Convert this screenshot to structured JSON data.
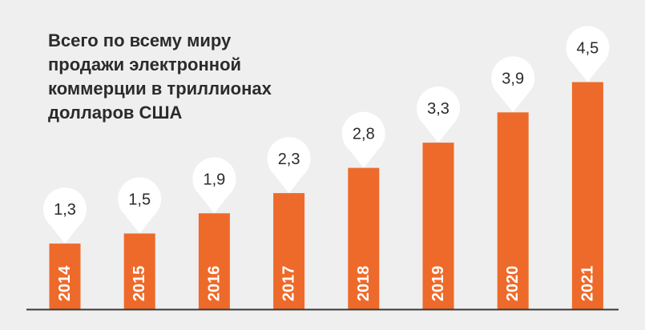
{
  "chart_data": {
    "type": "bar",
    "title": "Всего по всему миру\nпродажи электронной\nкоммерции в триллионах\nдолларов США",
    "categories": [
      "2014",
      "2015",
      "2016",
      "2017",
      "2018",
      "2019",
      "2020",
      "2021"
    ],
    "values": [
      1.3,
      1.5,
      1.9,
      2.3,
      2.8,
      3.3,
      3.9,
      4.5
    ],
    "value_labels": [
      "1,3",
      "1,5",
      "1,9",
      "2,3",
      "2,8",
      "3,3",
      "3,9",
      "4,5"
    ],
    "xlabel": "",
    "ylabel": "",
    "ylim": [
      0,
      5
    ],
    "grid": false,
    "legend": "none",
    "colors": {
      "bar": "#ee6a2a",
      "background": "#efefef",
      "marker": "#ffffff",
      "axis": "#3a3a3a",
      "text": "#2b2b2b",
      "tick_text": "#ffffff"
    }
  }
}
